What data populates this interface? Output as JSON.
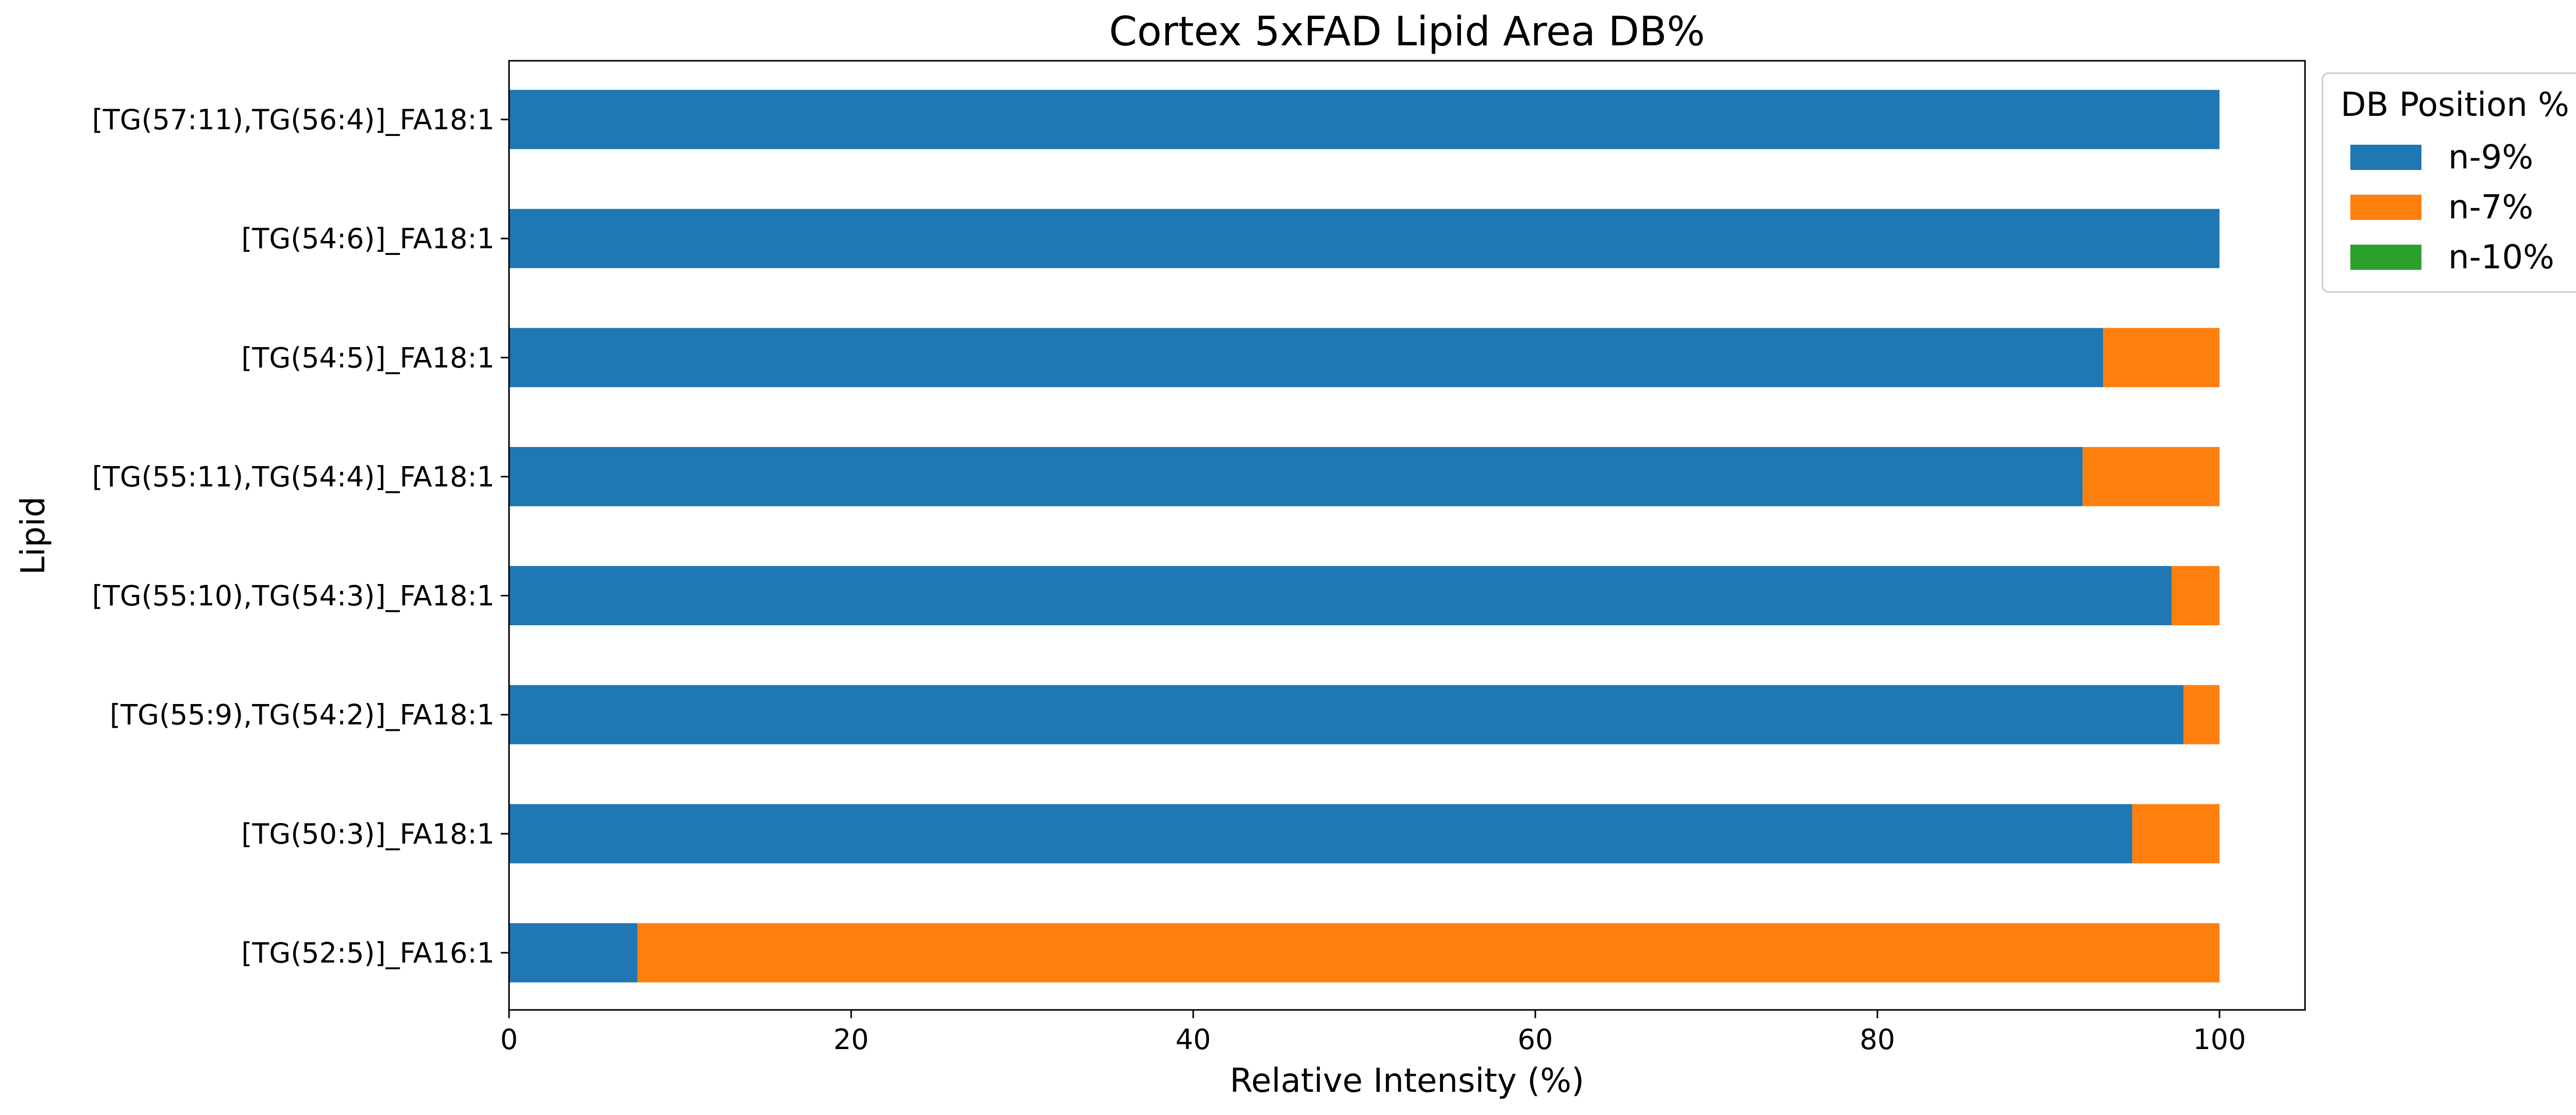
{
  "chart_data": {
    "type": "bar",
    "orientation": "horizontal",
    "stacked": true,
    "title": "Cortex 5xFAD Lipid Area DB%",
    "xlabel": "Relative Intensity (%)",
    "ylabel": "Lipid",
    "xlim": [
      0,
      105
    ],
    "xticks": [
      0,
      20,
      40,
      60,
      80,
      100
    ],
    "grid": false,
    "legend": {
      "title": "DB Position %",
      "placement": "outside-top-right"
    },
    "categories": [
      "[TG(57:11),TG(56:4)]_FA18:1",
      "[TG(54:6)]_FA18:1",
      "[TG(54:5)]_FA18:1",
      "[TG(55:11),TG(54:4)]_FA18:1",
      "[TG(55:10),TG(54:3)]_FA18:1",
      "[TG(55:9),TG(54:2)]_FA18:1",
      "[TG(50:3)]_FA18:1",
      "[TG(52:5)]_FA16:1"
    ],
    "series": [
      {
        "name": "n-9%",
        "color": "#1f77b4",
        "values": [
          100,
          100,
          93.2,
          92.0,
          97.2,
          97.9,
          94.9,
          7.5
        ]
      },
      {
        "name": "n-7%",
        "color": "#ff7f0e",
        "values": [
          0,
          0,
          6.8,
          8.0,
          2.8,
          2.1,
          5.1,
          92.5
        ]
      },
      {
        "name": "n-10%",
        "color": "#2ca02c",
        "values": [
          0,
          0,
          0,
          0,
          0,
          0,
          0,
          0
        ]
      }
    ]
  }
}
